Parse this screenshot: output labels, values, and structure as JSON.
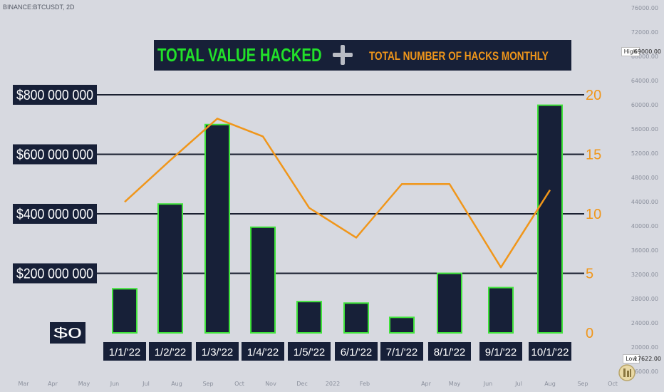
{
  "symbol_label": "BINANCE:BTCUSDT, 2D",
  "price_scale": {
    "labels": [
      "76000.00",
      "72000.00",
      "68000.00",
      "64000.00",
      "60000.00",
      "56000.00",
      "52000.00",
      "48000.00",
      "44000.00",
      "40000.00",
      "36000.00",
      "32000.00",
      "28000.00",
      "24000.00",
      "20000.00",
      "16000.00"
    ],
    "high_label": "High",
    "high_value": "69000.00",
    "low_label": "Low",
    "low_value": "17622.00"
  },
  "time_axis": [
    "Mar",
    "Apr",
    "May",
    "Jun",
    "Jul",
    "Aug",
    "Sep",
    "Oct",
    "Nov",
    "Dec",
    "2022",
    "Feb",
    "Apr",
    "May",
    "Jun",
    "Jul",
    "Aug",
    "Sep",
    "Oct"
  ],
  "colors": {
    "background": "#d7d9e0",
    "bar_fill": "#172038",
    "bar_border": "#3fe33a",
    "line": "#f0961a",
    "grid": "#1a2030"
  },
  "chart_data": {
    "type": "bar",
    "title": "TOTAL VALUE HACKED",
    "subtitle": "TOTAL NUMBER OF HACKS MONTHLY",
    "categories": [
      "1/1/'22",
      "1/2/'22",
      "1/3/'22",
      "1/4/'22",
      "1/5/'22",
      "6/1/'22",
      "7/1/'22",
      "8/1/'22",
      "9/1/'22",
      "10/1/'22"
    ],
    "series": [
      {
        "values": [
          148000000,
          433000000,
          700000000,
          355000000,
          105000000,
          100000000,
          52000000,
          200000000,
          152000000,
          765000000
        ],
        "axis": "left"
      },
      {
        "type": "line",
        "values": [
          11,
          14.5,
          18,
          16.5,
          10.5,
          8,
          12.5,
          12.5,
          5.5,
          12
        ],
        "axis": "right"
      }
    ],
    "y_left": {
      "range": [
        0,
        800000000
      ],
      "tick_labels": [
        "$0",
        "$200 000 000",
        "$400 000 000",
        "$600 000 000",
        "$800 000 000"
      ]
    },
    "y_right": {
      "range": [
        0,
        20
      ],
      "tick_labels": [
        "0",
        "5",
        "10",
        "15",
        "20"
      ]
    },
    "grid": true
  }
}
